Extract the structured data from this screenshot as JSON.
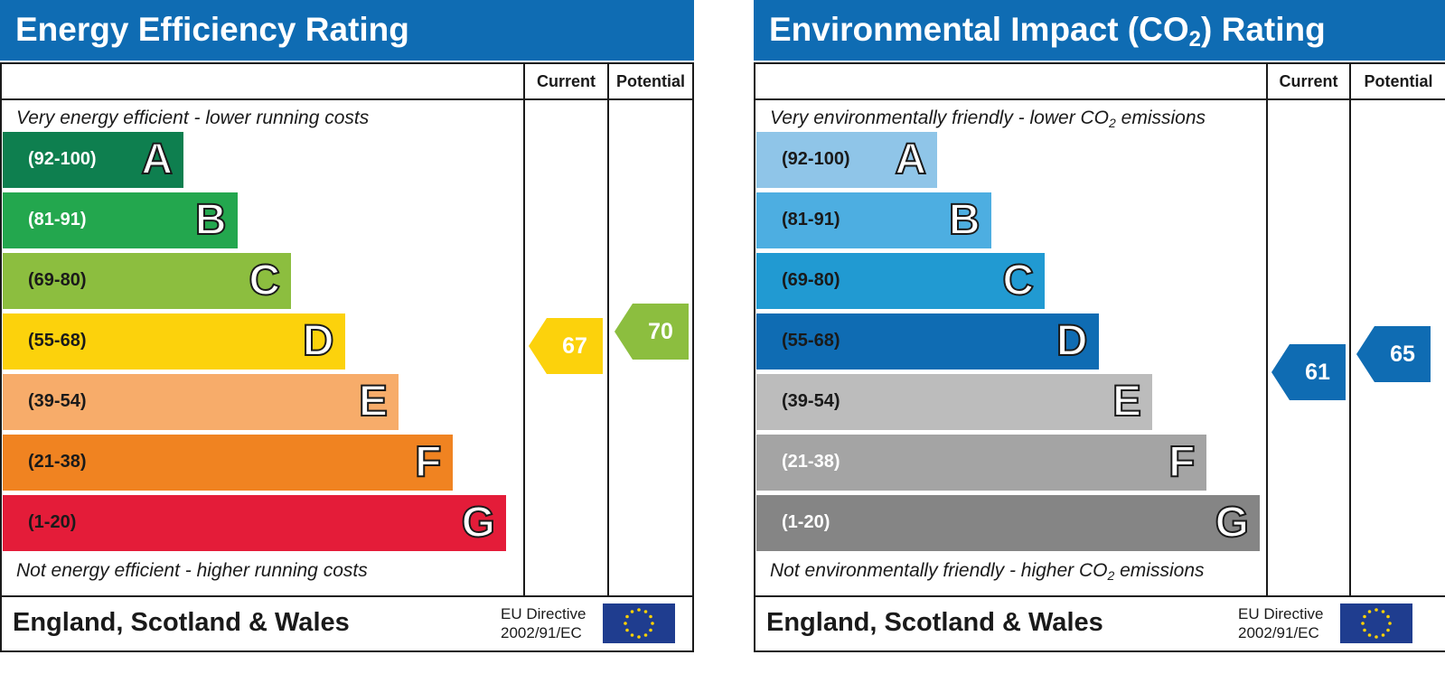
{
  "chart_data": [
    {
      "type": "bar",
      "title": "Energy Efficiency Rating",
      "columns": [
        "Current",
        "Potential"
      ],
      "top_caption": "Very energy efficient - lower running costs",
      "bottom_caption": "Not energy efficient - higher running costs",
      "categories": [
        "A",
        "B",
        "C",
        "D",
        "E",
        "F",
        "G"
      ],
      "ranges": [
        "(92-100)",
        "(81-91)",
        "(69-80)",
        "(55-68)",
        "(39-54)",
        "(21-38)",
        "(1-20)"
      ],
      "range_min": [
        92,
        81,
        69,
        55,
        39,
        21,
        1
      ],
      "range_max": [
        100,
        91,
        80,
        68,
        54,
        38,
        20
      ],
      "band_colors": [
        "#0e7f4f",
        "#23a74e",
        "#8cbe3f",
        "#fcd20c",
        "#f7ac6a",
        "#f08321",
        "#e41c39"
      ],
      "range_text_colors": [
        "#ffffff",
        "#ffffff",
        "#1a1a1a",
        "#1a1a1a",
        "#1a1a1a",
        "#1a1a1a",
        "#1a1a1a"
      ],
      "current": {
        "value": 67,
        "label": "67",
        "color": "#fcd20c"
      },
      "potential": {
        "value": 70,
        "label": "70",
        "color": "#8cbe3f"
      },
      "footer_region": "England, Scotland & Wales",
      "footer_directive_line1": "EU Directive",
      "footer_directive_line2": "2002/91/EC"
    },
    {
      "type": "bar",
      "title": "Environmental Impact (CO",
      "title_subscript": "2",
      "title_suffix": ") Rating",
      "columns": [
        "Current",
        "Potential"
      ],
      "top_caption": "Very environmentally friendly - lower CO",
      "top_caption_subscript": "2",
      "top_caption_suffix": " emissions",
      "bottom_caption": "Not environmentally friendly - higher CO",
      "bottom_caption_subscript": "2",
      "bottom_caption_suffix": " emissions",
      "categories": [
        "A",
        "B",
        "C",
        "D",
        "E",
        "F",
        "G"
      ],
      "ranges": [
        "(92-100)",
        "(81-91)",
        "(69-80)",
        "(55-68)",
        "(39-54)",
        "(21-38)",
        "(1-20)"
      ],
      "range_min": [
        92,
        81,
        69,
        55,
        39,
        21,
        1
      ],
      "range_max": [
        100,
        91,
        80,
        68,
        54,
        38,
        20
      ],
      "band_colors": [
        "#8fc5e8",
        "#4daee1",
        "#219ad2",
        "#0f6cb3",
        "#bcbcbc",
        "#a4a4a4",
        "#858585"
      ],
      "range_text_colors": [
        "#1a1a1a",
        "#1a1a1a",
        "#1a1a1a",
        "#1a1a1a",
        "#1a1a1a",
        "#ffffff",
        "#ffffff"
      ],
      "current": {
        "value": 61,
        "label": "61",
        "color": "#0f6cb3"
      },
      "potential": {
        "value": 65,
        "label": "65",
        "color": "#0f6cb3"
      },
      "footer_region": "England, Scotland & Wales",
      "footer_directive_line1": "EU Directive",
      "footer_directive_line2": "2002/91/EC"
    }
  ]
}
